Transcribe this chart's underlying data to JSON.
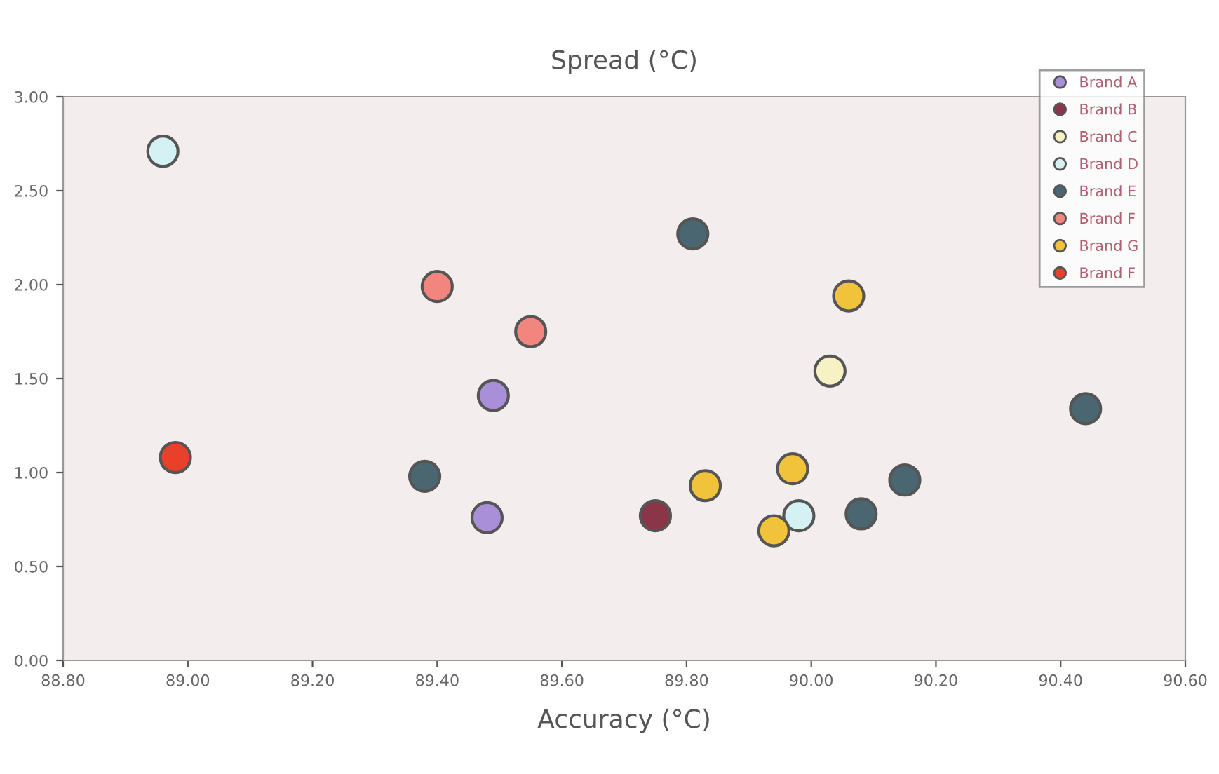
{
  "chart_data": {
    "type": "scatter",
    "xlabel": "Accuracy (°C)",
    "ylabel": "Spread (°C)",
    "xlim": [
      88.8,
      90.6
    ],
    "xticks": [
      {
        "value": 88.8,
        "label": "88.80"
      },
      {
        "value": 89.0,
        "label": "89.00"
      },
      {
        "value": 89.2,
        "label": "89.20"
      },
      {
        "value": 89.4,
        "label": "89.40"
      },
      {
        "value": 89.6,
        "label": "89.60"
      },
      {
        "value": 89.8,
        "label": "89.80"
      },
      {
        "value": 90.0,
        "label": "90.00"
      },
      {
        "value": 90.2,
        "label": "90.20"
      },
      {
        "value": 90.4,
        "label": "90.40"
      },
      {
        "value": 90.6,
        "label": "90.60"
      }
    ],
    "ylim": [
      0,
      3
    ],
    "yticks": [
      {
        "value": 0,
        "label": "0.00"
      },
      {
        "value": 0.5,
        "label": "0.50"
      },
      {
        "value": 1.0,
        "label": "1.00"
      },
      {
        "value": 1.5,
        "label": "1.50"
      },
      {
        "value": 2.0,
        "label": "2.00"
      },
      {
        "value": 2.5,
        "label": "2.50"
      },
      {
        "value": 3.0,
        "label": "3.00"
      }
    ],
    "marker": "circle",
    "legend": "top right",
    "grid": false,
    "series": [
      {
        "name": "Brand A",
        "color": "#a98fd8",
        "x": [
          89.49,
          89.48
        ],
        "values": [
          1.41,
          0.76
        ]
      },
      {
        "name": "Brand B",
        "color": "#8a3548",
        "x": [
          89.75
        ],
        "values": [
          0.77
        ]
      },
      {
        "name": "Brand C",
        "color": "#f6f2c4",
        "x": [
          90.03
        ],
        "values": [
          1.54
        ]
      },
      {
        "name": "Brand D",
        "color": "#d4f2f4",
        "x": [
          88.96,
          89.98
        ],
        "values": [
          2.71,
          0.77
        ]
      },
      {
        "name": "Brand E",
        "color": "#4a6670",
        "x": [
          89.38,
          89.81,
          90.08,
          90.15,
          90.44
        ],
        "values": [
          0.98,
          2.27,
          0.78,
          0.96,
          1.34
        ]
      },
      {
        "name": "Brand F",
        "color": "#f2857e",
        "x": [
          89.4,
          89.55
        ],
        "values": [
          1.99,
          1.75
        ]
      },
      {
        "name": "Brand G",
        "color": "#f0c33a",
        "x": [
          89.83,
          89.97,
          89.94,
          90.06
        ],
        "values": [
          0.93,
          1.02,
          0.69,
          1.94
        ]
      },
      {
        "name": "Brand F",
        "color": "#e8402a",
        "x": [
          88.98
        ],
        "values": [
          1.08
        ]
      }
    ]
  }
}
